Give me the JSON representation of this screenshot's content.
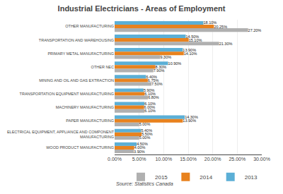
{
  "chart_data": {
    "type": "bar",
    "orientation": "horizontal",
    "title": "Industrial Electricians - Areas of Employment",
    "categories": [
      "OTHER MANUFACTURING",
      "TRANSPORTATION AND WAREHOUSING",
      "PRIMARY METAL MANUFACTURING",
      "OTHER NEC",
      "MINING AND OIL AND GAS EXTRACTION",
      "TRANSPORTATION EQUIPMENT MANUFACTURING",
      "MACHINERY MANUFACTURING",
      "PAPER MANUFACTURING",
      "ELECTRICAL EQUIPMENT, APPLIANCE AND COMPONENT\nMANUFACTURING",
      "WOOD PRODUCT MANUFACTURING"
    ],
    "series": [
      {
        "name": "2015",
        "color": "#b0b0b0",
        "values": [
          27.2,
          21.3,
          9.3,
          7.9,
          7.5,
          6.8,
          6.1,
          5.0,
          5.0,
          3.9
        ],
        "value_labels": [
          "27.20%",
          "21.30%",
          "9.30%",
          "7.90%",
          "7.50%",
          "6.80%",
          "6.10%",
          "5.00%",
          "5.00%",
          "3.90%"
        ]
      },
      {
        "name": "2014",
        "color": "#e8821e",
        "values": [
          20.25,
          15.1,
          14.1,
          8.3,
          6.75,
          6.1,
          6.0,
          13.9,
          5.5,
          4.0
        ],
        "value_labels": [
          "20.25%",
          "15.10%",
          "14.10%",
          "8.30%",
          "6.75%",
          "6.10%",
          "6.00%",
          "13.90%",
          "5.50%",
          "4.00%"
        ]
      },
      {
        "name": "2013",
        "color": "#5bafd6",
        "values": [
          18.1,
          14.5,
          13.9,
          10.9,
          6.4,
          5.9,
          6.1,
          14.3,
          5.4,
          4.5
        ],
        "value_labels": [
          "18.10%",
          "14.50%",
          "13.90%",
          "10.90%",
          "6.40%",
          "5.90%",
          "6.10%",
          "14.30%",
          "5.40%",
          "4.50%"
        ]
      }
    ],
    "xlim": [
      0,
      30
    ],
    "xticks": [
      {
        "value": 0,
        "label": "0.00%"
      },
      {
        "value": 5,
        "label": "5.00%"
      },
      {
        "value": 10,
        "label": "10.00%"
      },
      {
        "value": 15,
        "label": "15.00%"
      },
      {
        "value": 20,
        "label": "20.00%"
      },
      {
        "value": 25,
        "label": "25.00%"
      },
      {
        "value": 30,
        "label": "30.00%"
      }
    ],
    "grid": true,
    "legend": "lower right",
    "data_labels": true,
    "annotations": [
      "Source: Statistics Canada"
    ]
  }
}
